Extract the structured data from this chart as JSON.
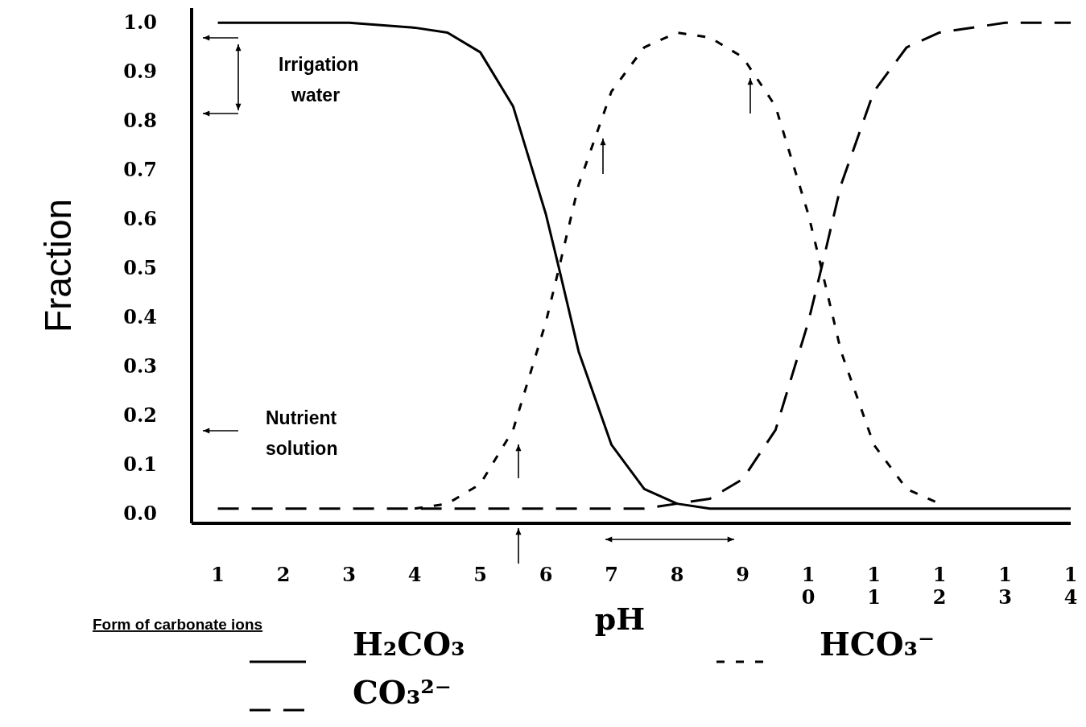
{
  "chart_data": {
    "type": "line",
    "xlabel": "pH",
    "ylabel": "Fraction",
    "legend_title": "Form of carbonate ions",
    "x": [
      1,
      2,
      3,
      4,
      4.5,
      5,
      5.5,
      6,
      6.2,
      6.5,
      7,
      7.5,
      8,
      8.5,
      9,
      9.5,
      10,
      10.2,
      10.5,
      11,
      11.5,
      12,
      13,
      14
    ],
    "series": [
      {
        "name": "H₂CO₃",
        "color": "#000000",
        "line_style": "solid",
        "values": [
          1.0,
          1.0,
          1.0,
          0.99,
          0.98,
          0.94,
          0.83,
          0.61,
          0.5,
          0.33,
          0.14,
          0.05,
          0.02,
          0.01,
          0.01,
          0.01,
          0.01,
          0.01,
          0.01,
          0.01,
          0.01,
          0.01,
          0.01,
          0.01
        ]
      },
      {
        "name": "HCO₃⁻",
        "color": "#000000",
        "line_style": "dashed",
        "values": [
          null,
          null,
          null,
          0.01,
          0.02,
          0.06,
          0.17,
          0.39,
          0.5,
          0.67,
          0.86,
          0.95,
          0.98,
          0.97,
          0.93,
          0.83,
          0.61,
          0.5,
          0.33,
          0.14,
          0.05,
          0.02,
          null,
          null
        ]
      },
      {
        "name": "CO₃²⁻",
        "color": "#000000",
        "line_style": "dashed",
        "values": [
          0.01,
          0.01,
          0.01,
          0.01,
          0.01,
          0.01,
          0.01,
          0.01,
          0.01,
          0.01,
          0.01,
          0.01,
          0.02,
          0.03,
          0.07,
          0.17,
          0.39,
          0.5,
          0.67,
          0.86,
          0.95,
          0.98,
          1.0,
          1.0
        ]
      }
    ],
    "xlim": [
      0.6,
      14
    ],
    "ylim": [
      -0.02,
      1.03
    ],
    "xticks": [
      1,
      2,
      3,
      4,
      5,
      6,
      7,
      8,
      9,
      10,
      11,
      12,
      13,
      14
    ],
    "yticks": [
      {
        "value": 0,
        "label": "0.0"
      },
      0.1,
      0.2,
      0.3,
      0.4,
      0.5,
      0.6,
      0.7,
      0.8,
      0.9,
      {
        "value": 1,
        "label": "1.0"
      }
    ],
    "annotations": [
      "Irrigation water",
      "Nutrient solution"
    ],
    "grid": false,
    "legend": "bottom",
    "marker": "none"
  }
}
